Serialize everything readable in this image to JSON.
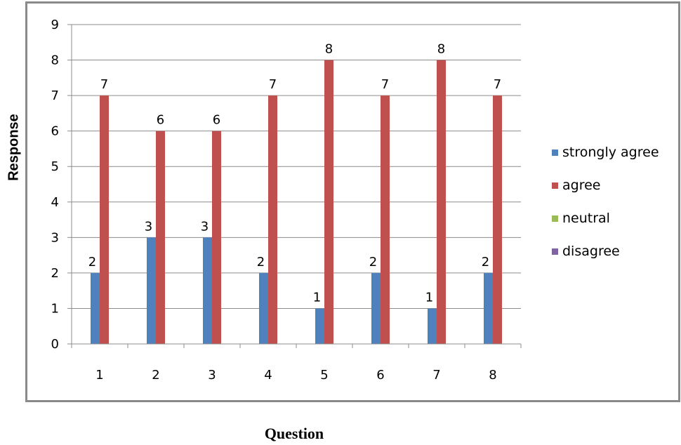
{
  "chart_data": {
    "type": "bar",
    "xlabel": "Question",
    "ylabel": "Response",
    "categories": [
      "1",
      "2",
      "3",
      "4",
      "5",
      "6",
      "7",
      "8"
    ],
    "ylim": [
      0,
      9
    ],
    "yticks": [
      "0",
      "1",
      "2",
      "3",
      "4",
      "5",
      "6",
      "7",
      "8",
      "9"
    ],
    "grid": true,
    "legend_position": "right",
    "series": [
      {
        "name": "strongly agree",
        "color": "#4f81bd",
        "values": [
          2,
          3,
          3,
          2,
          1,
          2,
          1,
          2
        ],
        "labels": [
          "2",
          "3",
          "3",
          "2",
          "1",
          "2",
          "1",
          "2"
        ]
      },
      {
        "name": "agree",
        "color": "#c0504d",
        "values": [
          7,
          6,
          6,
          7,
          8,
          7,
          8,
          7
        ],
        "labels": [
          "7",
          "6",
          "6",
          "7",
          "8",
          "7",
          "8",
          "7"
        ]
      },
      {
        "name": "neutral",
        "color": "#9bbb59",
        "values": [
          0,
          0,
          0,
          0,
          0,
          0,
          0,
          0
        ]
      },
      {
        "name": "disagree",
        "color": "#8064a2",
        "values": [
          0,
          0,
          0,
          0,
          0,
          0,
          0,
          0
        ]
      }
    ]
  }
}
